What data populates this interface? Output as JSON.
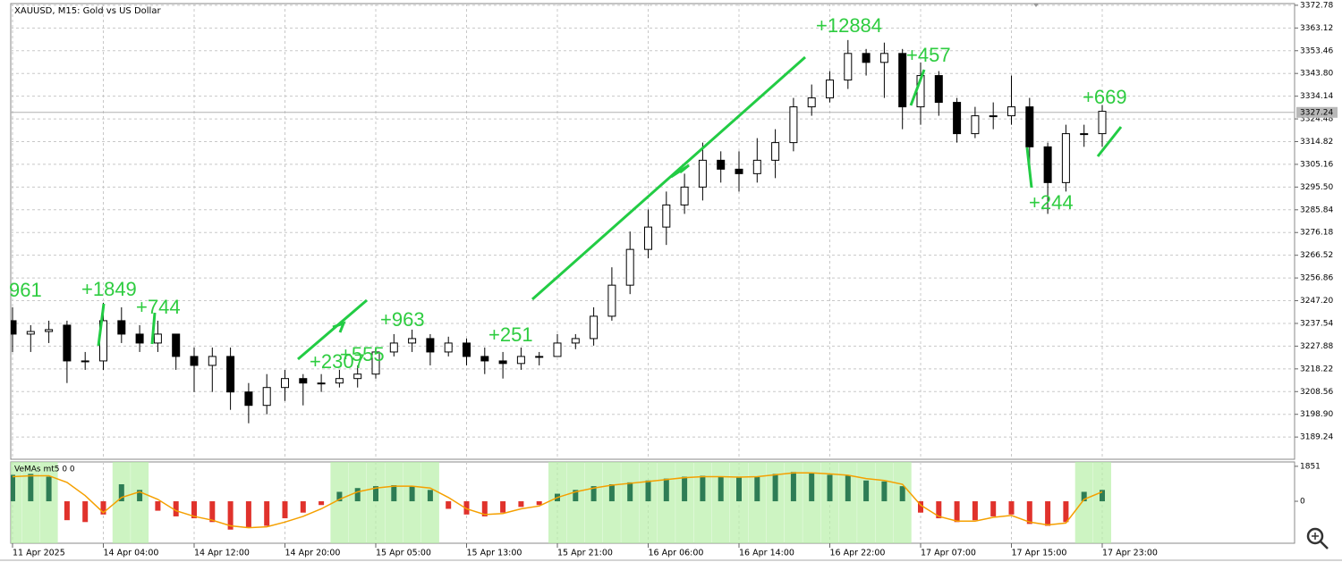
{
  "chart_data": [
    {
      "type": "candlestick",
      "title": "XAUUSD, M15:  Gold vs US Dollar",
      "categories": [
        "11 Apr 2025",
        null,
        null,
        null,
        null,
        "14 Apr 04:00",
        null,
        null,
        null,
        null,
        "14 Apr 12:00",
        null,
        null,
        null,
        null,
        "14 Apr 20:00",
        null,
        null,
        null,
        null,
        "15 Apr 05:00",
        null,
        null,
        null,
        null,
        "15 Apr 13:00",
        null,
        null,
        null,
        null,
        "15 Apr 21:00",
        null,
        null,
        null,
        null,
        "16 Apr 06:00",
        null,
        null,
        null,
        null,
        "16 Apr 14:00",
        null,
        null,
        null,
        null,
        "16 Apr 22:00",
        null,
        null,
        null,
        null,
        "17 Apr 07:00",
        null,
        null,
        null,
        null,
        "17 Apr 15:00",
        null,
        null,
        null,
        null,
        "17 Apr 23:00"
      ],
      "open": [
        3238.7,
        3233.0,
        3234.1,
        3236.8,
        3221.6,
        3221.6,
        3238.7,
        3233.0,
        3229.2,
        3233.0,
        3223.5,
        3219.7,
        3223.5,
        3208.4,
        3202.7,
        3210.3,
        3214.1,
        3212.2,
        3212.2,
        3214.1,
        3216.0,
        3225.4,
        3229.2,
        3231.1,
        3225.4,
        3229.2,
        3223.5,
        3221.6,
        3220.5,
        3223.5,
        3223.5,
        3229.2,
        3231.1,
        3240.6,
        3253.8,
        3269.0,
        3278.5,
        3287.9,
        3295.5,
        3306.9,
        3303.1,
        3301.2,
        3306.9,
        3314.4,
        3329.6,
        3333.4,
        3341.0,
        3352.3,
        3348.5,
        3352.3,
        3329.6,
        3342.9,
        3331.5,
        3318.2,
        3325.8,
        3325.8,
        3329.6,
        3312.6,
        3297.4,
        3318.2,
        3318.2
      ],
      "high": [
        3244.4,
        3236.8,
        3238.7,
        3238.7,
        3225.4,
        3246.3,
        3244.4,
        3236.8,
        3238.7,
        3233.0,
        3227.3,
        3227.3,
        3227.3,
        3212.2,
        3216.0,
        3217.8,
        3216.0,
        3216.0,
        3217.8,
        3219.7,
        3227.3,
        3233.0,
        3234.9,
        3233.0,
        3231.9,
        3231.1,
        3227.3,
        3225.4,
        3227.3,
        3225.4,
        3233.0,
        3233.0,
        3244.4,
        3261.4,
        3276.6,
        3286.0,
        3293.6,
        3301.2,
        3314.4,
        3310.7,
        3310.7,
        3316.3,
        3320.1,
        3333.4,
        3339.1,
        3344.8,
        3358.0,
        3354.2,
        3356.9,
        3354.2,
        3348.5,
        3344.8,
        3333.4,
        3329.6,
        3331.5,
        3342.9,
        3333.4,
        3314.4,
        3322.0,
        3322.0,
        3330.4
      ],
      "low": [
        3225.4,
        3225.4,
        3229.2,
        3212.2,
        3217.8,
        3217.8,
        3229.2,
        3225.4,
        3225.4,
        3217.8,
        3208.4,
        3208.4,
        3200.8,
        3195.1,
        3198.9,
        3204.6,
        3202.7,
        3208.4,
        3210.3,
        3210.3,
        3214.1,
        3223.5,
        3225.4,
        3219.7,
        3223.5,
        3219.7,
        3216.0,
        3214.1,
        3217.8,
        3219.7,
        3225.4,
        3226.6,
        3228.1,
        3238.7,
        3250.0,
        3265.2,
        3270.9,
        3284.1,
        3289.8,
        3297.4,
        3293.6,
        3297.4,
        3299.3,
        3310.7,
        3325.8,
        3331.5,
        3337.2,
        3342.9,
        3333.4,
        3320.1,
        3322.0,
        3325.8,
        3314.4,
        3316.3,
        3320.1,
        3322.0,
        3303.1,
        3284.1,
        3293.6,
        3312.6,
        3312.6
      ],
      "close": [
        3233.0,
        3234.1,
        3234.9,
        3221.6,
        3221.6,
        3238.7,
        3233.0,
        3229.2,
        3233.0,
        3223.5,
        3219.7,
        3223.5,
        3208.4,
        3202.7,
        3210.3,
        3214.1,
        3212.2,
        3212.2,
        3214.1,
        3216.0,
        3225.4,
        3229.2,
        3231.1,
        3225.4,
        3229.2,
        3223.5,
        3221.6,
        3220.5,
        3223.5,
        3223.5,
        3229.2,
        3231.1,
        3240.6,
        3253.8,
        3269.0,
        3278.5,
        3287.9,
        3295.5,
        3306.9,
        3303.1,
        3301.2,
        3306.9,
        3314.4,
        3329.6,
        3333.4,
        3341.0,
        3352.3,
        3348.5,
        3352.3,
        3329.6,
        3342.9,
        3331.5,
        3318.2,
        3325.8,
        3325.8,
        3329.6,
        3312.6,
        3297.4,
        3318.2,
        3318.2,
        3327.7
      ],
      "up_color": "#ffffff",
      "down_color": "#000000",
      "ylim": [
        3179.8,
        3373.5
      ],
      "yticks": [
        3372.78,
        3363.12,
        3353.46,
        {
          "value": 3343.8,
          "label": "3343.80"
        },
        3334.14,
        3324.48,
        3314.82,
        3305.16,
        {
          "value": 3295.5,
          "label": "3295.50"
        },
        3285.84,
        3276.18,
        3266.52,
        3256.86,
        {
          "value": 3247.2,
          "label": "3247.20"
        },
        3237.54,
        3227.88,
        3218.22,
        3208.56,
        {
          "value": 3198.9,
          "label": "3198.90"
        },
        3189.24
      ],
      "grid": true,
      "last_price": 3327.24,
      "annotations": [
        "+12884",
        "+457",
        "+669",
        "+244",
        "+963",
        "+251",
        "+1849",
        "+744",
        "961",
        "+2307",
        "+555"
      ],
      "annotation_color": "#2ecc40"
    },
    {
      "type": "bar",
      "title": "VeMAs mt5 0 0",
      "values": [
        1400,
        1450,
        1300,
        -1000,
        -1100,
        -700,
        900,
        600,
        -500,
        -800,
        -900,
        -1100,
        -1500,
        -1400,
        -1300,
        -900,
        -600,
        -200,
        500,
        700,
        800,
        850,
        800,
        600,
        -400,
        -700,
        -800,
        -600,
        -300,
        -200,
        400,
        600,
        800,
        900,
        1000,
        1100,
        1200,
        1300,
        1350,
        1300,
        1250,
        1300,
        1450,
        1550,
        1500,
        1400,
        1350,
        1100,
        1050,
        800,
        -600,
        -900,
        -1100,
        -1000,
        -800,
        -700,
        -1200,
        -1300,
        -1100,
        500,
        600
      ],
      "color": "#2e7d55",
      "negative_color": "#e0322c",
      "zone_color": "#b8f0a8",
      "signal": {
        "color": "#f5a000",
        "values": [
          1300,
          1350,
          1350,
          1000,
          300,
          -600,
          200,
          500,
          100,
          -500,
          -800,
          -1000,
          -1300,
          -1400,
          -1350,
          -1100,
          -800,
          -400,
          100,
          500,
          700,
          800,
          800,
          700,
          200,
          -400,
          -700,
          -650,
          -400,
          -250,
          200,
          500,
          700,
          850,
          950,
          1050,
          1150,
          1250,
          1300,
          1300,
          1280,
          1300,
          1400,
          1500,
          1500,
          1450,
          1380,
          1200,
          1100,
          900,
          -200,
          -800,
          -1050,
          -1050,
          -850,
          -750,
          -1100,
          -1250,
          -1150,
          100,
          500
        ]
      },
      "ylim": [
        -2221,
        2082
      ],
      "yticks": [
        0,
        1851
      ]
    }
  ]
}
